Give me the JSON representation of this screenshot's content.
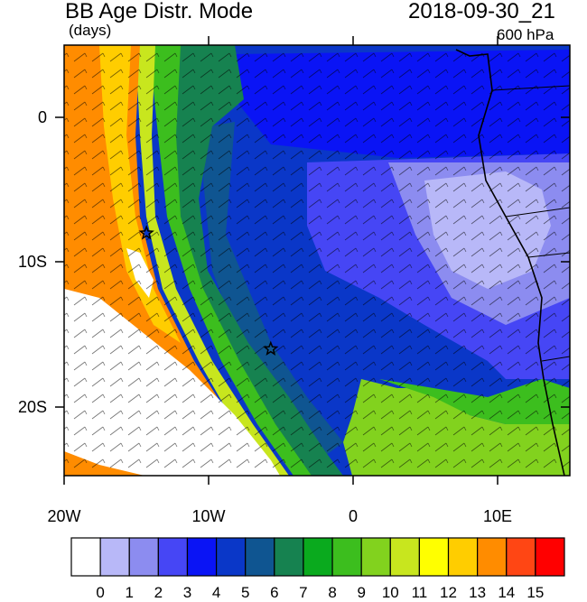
{
  "header": {
    "title": "BB Age Distr. Mode",
    "units": "(days)",
    "datetime": "2018-09-30_21",
    "level": "600 hPa"
  },
  "map": {
    "y_axis_labels": [
      "0",
      "10S",
      "20S"
    ],
    "x_axis_labels": [
      "20W",
      "10W",
      "0",
      "10E"
    ],
    "markers": [
      {
        "name": "star-marker-1",
        "lon": -14.3,
        "lat": -8.0
      },
      {
        "name": "star-marker-2",
        "lon": -5.7,
        "lat": -16.0
      }
    ]
  },
  "colorbar": {
    "labels": [
      "0",
      "1",
      "2",
      "3",
      "4",
      "5",
      "6",
      "7",
      "8",
      "9",
      "10",
      "11",
      "12",
      "13",
      "14",
      "15"
    ],
    "colors": [
      "#ffffff",
      "#b8b8f8",
      "#8c8cf0",
      "#4646f5",
      "#0a14f5",
      "#0a37c8",
      "#0f5591",
      "#168250",
      "#0aaa1e",
      "#3cbe1e",
      "#82d21e",
      "#c8e61e",
      "#ffff00",
      "#ffcd00",
      "#ff8c00",
      "#ff4614",
      "#ff0000"
    ]
  },
  "palette": {
    "background": "#ffffff",
    "coast": "#000000",
    "orange": "#ff8c00",
    "white_region": "#ffffff",
    "ocean_deep": "#0a37c8"
  }
}
